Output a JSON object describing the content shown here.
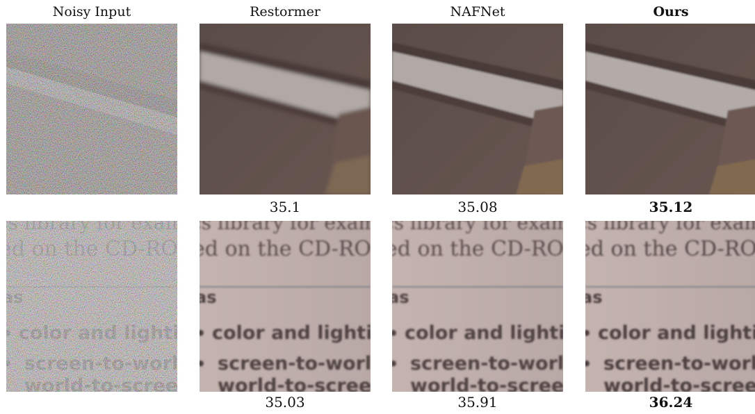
{
  "columns": [
    {
      "title": "Noisy Input"
    },
    {
      "title": "Restormer"
    },
    {
      "title": "NAFNet"
    },
    {
      "title": "Ours"
    }
  ],
  "rows": [
    {
      "scores": [
        "35.1",
        "35.08",
        "35.12"
      ]
    },
    {
      "scores": [
        "35.03",
        "35.91",
        "36.24"
      ],
      "text_lines": [
        "ics library for exam",
        "ed on the CD-ROM",
        "as",
        "color and lighting",
        "screen-to-world",
        "world-to-screen"
      ],
      "bullet": "•"
    }
  ],
  "colors": {
    "wall": "#5f4f4b",
    "stripe": "#b0a9a5",
    "paper": "#c2b1ad",
    "ink": "#3e3434"
  }
}
